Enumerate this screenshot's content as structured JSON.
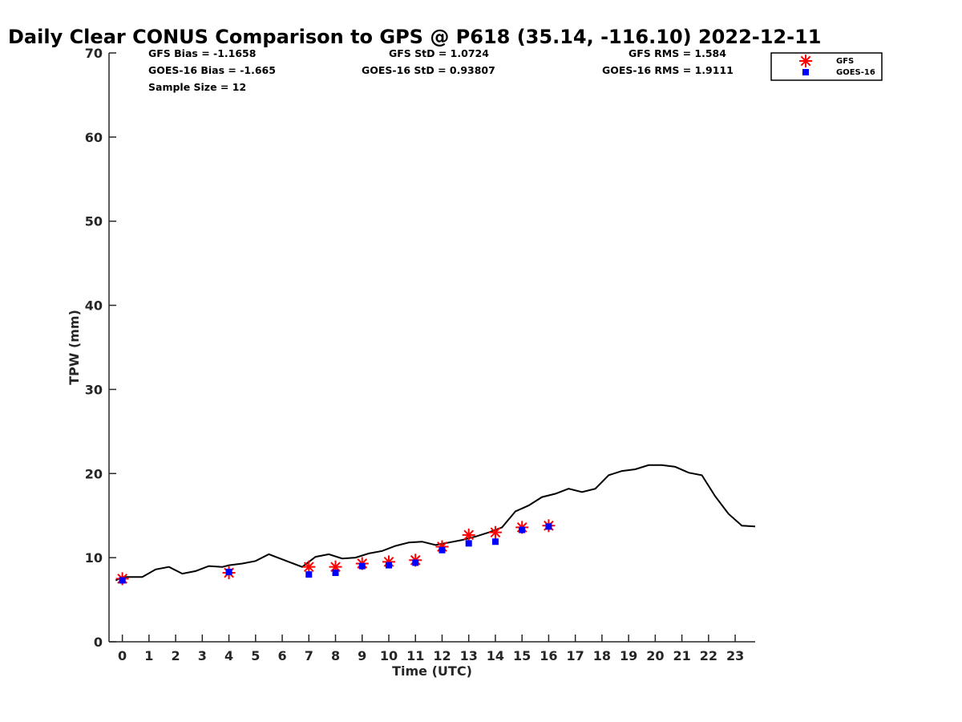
{
  "chart_data": {
    "type": "line",
    "title": "Daily Clear CONUS Comparison to GPS @ P618 (35.14, -116.10) 2022-12-11",
    "xlabel": "Time (UTC)",
    "ylabel": "TPW (mm)",
    "xlim": [
      -0.5,
      23.75
    ],
    "ylim": [
      0,
      70
    ],
    "x_ticks": [
      "0",
      "1",
      "2",
      "3",
      "4",
      "5",
      "6",
      "7",
      "8",
      "9",
      "10",
      "11",
      "12",
      "13",
      "14",
      "15",
      "16",
      "17",
      "18",
      "19",
      "20",
      "21",
      "22",
      "23"
    ],
    "y_ticks": [
      "0",
      "10",
      "20",
      "30",
      "40",
      "50",
      "60",
      "70"
    ],
    "grid": false,
    "legend_position": "top-right",
    "stats": {
      "gfs_bias": "GFS Bias = -1.1658",
      "goes_bias": "GOES-16 Bias = -1.665",
      "sample_size": "Sample Size = 12",
      "gfs_std": "GFS StD = 1.0724",
      "goes_std": "GOES-16 StD = 0.93807",
      "gfs_rms": "GFS RMS = 1.584",
      "goes_rms": "GOES-16 RMS = 1.9111"
    },
    "gps_line": {
      "color": "#000000",
      "x": [
        -0.25,
        0,
        0.25,
        0.75,
        1.25,
        1.75,
        2.25,
        2.75,
        3.25,
        3.75,
        4.0,
        4.5,
        5.0,
        5.5,
        5.75,
        6.25,
        6.75,
        7.25,
        7.75,
        8.25,
        8.75,
        9.25,
        9.75,
        10.25,
        10.75,
        11.25,
        11.75,
        12.25,
        12.75,
        13.25,
        13.75,
        14.25,
        14.75,
        15.25,
        15.75,
        16.25,
        16.75,
        17.25,
        17.75,
        18.25,
        18.75,
        19.25,
        19.75,
        20.25,
        20.75,
        21.25,
        21.75,
        22.25,
        22.75,
        23.25,
        23.75
      ],
      "y": [
        7.3,
        7.7,
        7.7,
        7.7,
        8.6,
        8.9,
        8.1,
        8.4,
        9.0,
        8.9,
        9.1,
        9.3,
        9.6,
        10.4,
        10.1,
        9.5,
        8.9,
        10.1,
        10.4,
        9.9,
        10.0,
        10.5,
        10.8,
        11.4,
        11.8,
        11.9,
        11.5,
        11.8,
        12.1,
        12.5,
        13.0,
        13.6,
        15.5,
        16.2,
        17.2,
        17.6,
        18.2,
        17.8,
        18.2,
        19.8,
        20.3,
        20.5,
        21.0,
        21.0,
        20.8,
        20.1,
        19.8,
        17.3,
        15.2,
        13.8,
        13.7
      ]
    },
    "series": [
      {
        "name": "GFS",
        "marker": "asterisk",
        "color": "#ff0000",
        "x": [
          0,
          4,
          7,
          8,
          9,
          10,
          11,
          12,
          13,
          14,
          15,
          16
        ],
        "y": [
          7.5,
          8.2,
          8.9,
          8.9,
          9.3,
          9.5,
          9.7,
          11.3,
          12.7,
          13.0,
          13.6,
          13.8
        ]
      },
      {
        "name": "GOES-16",
        "marker": "square",
        "color": "#0000ff",
        "x": [
          0,
          4,
          7,
          8,
          9,
          10,
          11,
          12,
          13,
          14,
          15,
          16
        ],
        "y": [
          7.3,
          8.3,
          8.0,
          8.2,
          9.0,
          9.1,
          9.4,
          10.9,
          11.7,
          11.9,
          13.3,
          13.7
        ]
      }
    ]
  }
}
